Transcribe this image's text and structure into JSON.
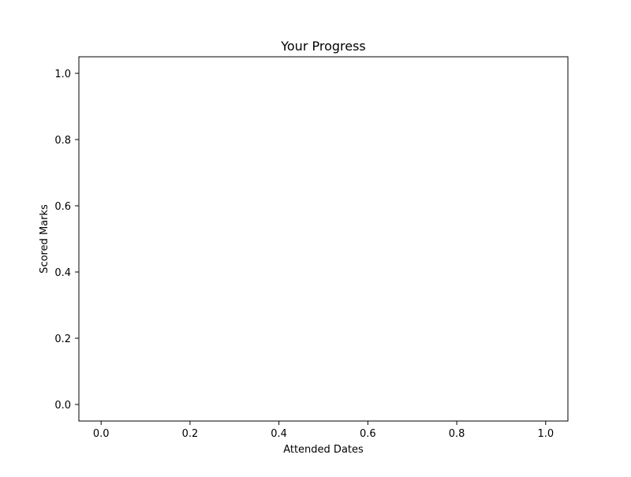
{
  "chart_data": {
    "type": "line",
    "title": "Your Progress",
    "xlabel": "Attended Dates",
    "ylabel": "Scored Marks",
    "xlim": [
      -0.05,
      1.05
    ],
    "ylim": [
      -0.05,
      1.05
    ],
    "xticks": [
      "0.0",
      "0.2",
      "0.4",
      "0.6",
      "0.8",
      "1.0"
    ],
    "yticks": [
      "0.0",
      "0.2",
      "0.4",
      "0.6",
      "0.8",
      "1.0"
    ],
    "grid": false,
    "series": []
  }
}
